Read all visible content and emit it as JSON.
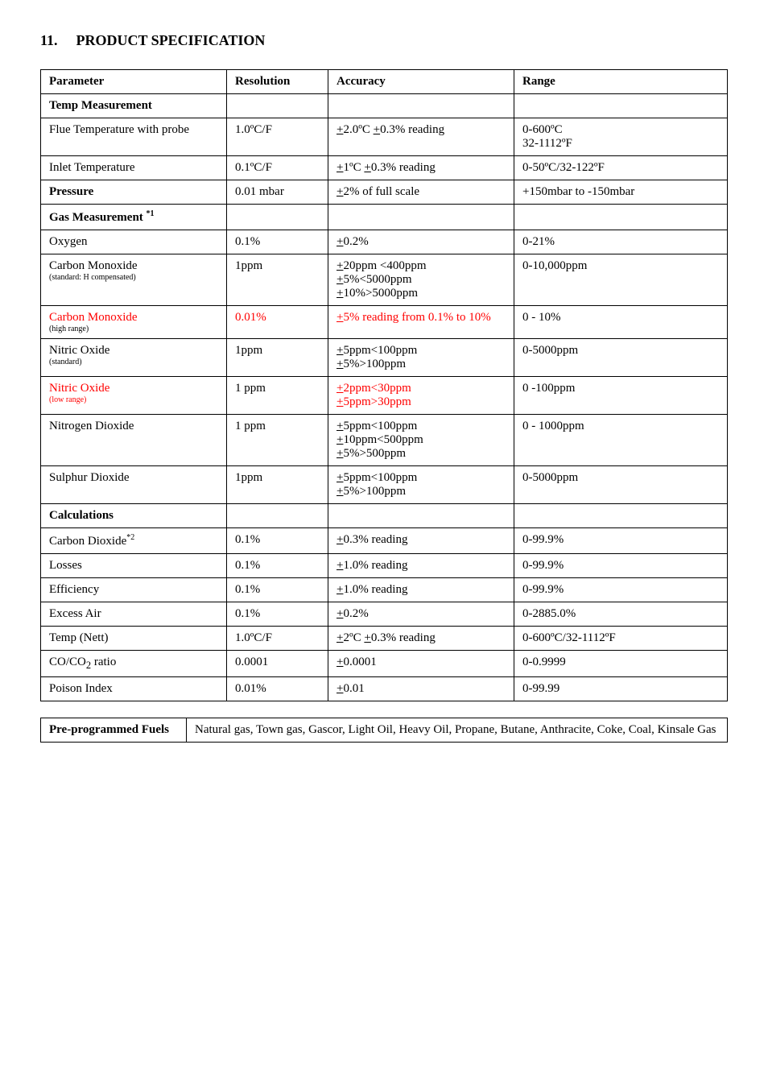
{
  "title": {
    "number": "11.",
    "text": "PRODUCT SPECIFICATION"
  },
  "columns": {
    "parameter": "Parameter",
    "resolution": "Resolution",
    "accuracy": "Accuracy",
    "range": "Range"
  },
  "section_headers": {
    "temp_measurement": "Temp Measurement",
    "gas_measurement": "Gas Measurement",
    "gas_measurement_sup": "*1",
    "calculations": "Calculations"
  },
  "rows": {
    "flue_temp": {
      "param": "Flue Temperature with probe",
      "res": "1.0ºC/F",
      "acc": "+2.0ºC +0.3% reading",
      "range": "0-600ºC\n32-1112ºF"
    },
    "inlet_temp": {
      "param": "Inlet Temperature",
      "res": "0.1ºC/F",
      "acc": "+1ºC +0.3% reading",
      "range": "0-50ºC/32-122ºF"
    },
    "pressure": {
      "param": "Pressure",
      "res": "0.01 mbar",
      "acc": "+2% of full scale",
      "range": "+150mbar to -150mbar"
    },
    "oxygen": {
      "param": "Oxygen",
      "res": "0.1%",
      "acc": "+0.2%",
      "range": "0-21%"
    },
    "carbon_monoxide_std": {
      "param": "Carbon Monoxide",
      "param_note": "(standard: H compensated)",
      "res": "1ppm",
      "acc": "+20ppm <400ppm\n+5%<5000ppm\n+10%>5000ppm",
      "range": "0-10,000ppm"
    },
    "carbon_monoxide_high": {
      "param": "Carbon Monoxide",
      "param_note": "(high range)",
      "res": "0.01%",
      "acc": "+5% reading from 0.1% to 10%",
      "range": "0 - 10%"
    },
    "nitric_oxide_std": {
      "param": "Nitric Oxide",
      "param_note": "(standard)",
      "res": "1ppm",
      "acc": "+5ppm<100ppm\n+5%>100ppm",
      "range": "0-5000ppm"
    },
    "nitric_oxide_low": {
      "param": "Nitric Oxide",
      "param_note": "(low range)",
      "res": "1 ppm",
      "acc": "+2ppm<30ppm\n+5ppm>30ppm",
      "range": "0 -100ppm"
    },
    "nitrogen_dioxide": {
      "param": "Nitrogen Dioxide",
      "res": "1 ppm",
      "acc": "+5ppm<100ppm\n+10ppm<500ppm\n+5%>500ppm",
      "range": "0 - 1000ppm"
    },
    "sulphur_dioxide": {
      "param": "Sulphur Dioxide",
      "res": "1ppm",
      "acc": "+5ppm<100ppm\n+5%>100ppm",
      "range": "0-5000ppm"
    },
    "carbon_dioxide": {
      "param": "Carbon Dioxide",
      "param_sup": "*2",
      "res": "0.1%",
      "acc": "+0.3% reading",
      "range": "0-99.9%"
    },
    "losses": {
      "param": "Losses",
      "res": "0.1%",
      "acc": "+1.0% reading",
      "range": "0-99.9%"
    },
    "efficiency": {
      "param": "Efficiency",
      "res": "0.1%",
      "acc": "+1.0% reading",
      "range": "0-99.9%"
    },
    "excess_air": {
      "param": "Excess Air",
      "res": "0.1%",
      "acc": "+0.2%",
      "range": "0-2885.0%"
    },
    "temp_nett": {
      "param": "Temp (Nett)",
      "res": "1.0ºC/F",
      "acc": "+2ºC +0.3% reading",
      "range": "0-600ºC/32-1112ºF"
    },
    "co_co2_ratio": {
      "param_prefix": "CO/CO",
      "param_sub": "2",
      "param_suffix": " ratio",
      "res": "0.0001",
      "acc": "+0.0001",
      "range": "0-0.9999"
    },
    "poison_index": {
      "param": "Poison Index",
      "res": "0.01%",
      "acc": "+0.01",
      "range": "0-99.99"
    }
  },
  "fuels": {
    "label": "Pre-programmed Fuels",
    "value": "Natural gas, Town gas, Gascor, Light Oil, Heavy Oil, Propane, Butane, Anthracite, Coke, Coal, Kinsale Gas"
  }
}
